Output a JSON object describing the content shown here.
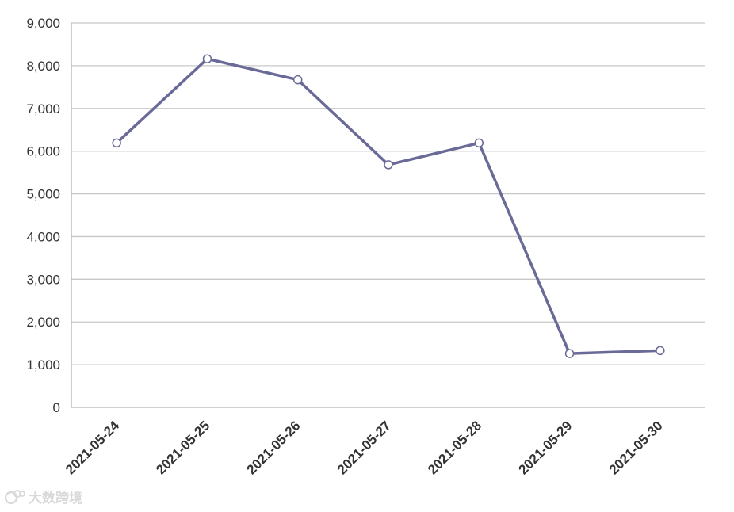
{
  "chart_data": {
    "type": "line",
    "categories": [
      "2021-05-24",
      "2021-05-25",
      "2021-05-26",
      "2021-05-27",
      "2021-05-28",
      "2021-05-29",
      "2021-05-30"
    ],
    "series": [
      {
        "values": [
          6190,
          8160,
          7670,
          5680,
          6190,
          1260,
          1330
        ]
      }
    ],
    "yticks": [
      "0",
      "1,000",
      "2,000",
      "3,000",
      "4,000",
      "5,000",
      "6,000",
      "7,000",
      "8,000",
      "9,000"
    ],
    "ylim": [
      0,
      9000
    ],
    "grid": true,
    "line_color": "#6a6a98",
    "marker_fill": "#ffffff"
  },
  "watermark": {
    "text": "大数跨境"
  }
}
